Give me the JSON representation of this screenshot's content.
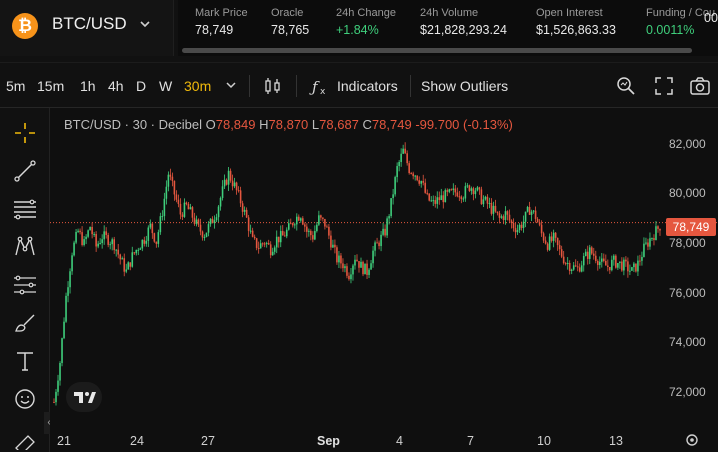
{
  "pair": {
    "logo_glyph": "₿",
    "name": "BTC/USD",
    "chevron_icon": "chevron-down-icon",
    "logo_color": "#f7931a"
  },
  "stats": [
    {
      "label": "Mark Price",
      "value": "78,749"
    },
    {
      "label": "Oracle",
      "value": "78,765"
    },
    {
      "label": "24h Change",
      "value": "+1.84%"
    },
    {
      "label": "24h Volume",
      "value": "$21,828,293.24"
    },
    {
      "label": "Open Interest",
      "value": "$1,526,863.33"
    },
    {
      "label": "Funding / Cou",
      "value": "0.0011%"
    },
    {
      "label": "",
      "value": "00"
    }
  ],
  "toolbar": {
    "intervals": [
      "5m",
      "15m",
      "1h",
      "4h",
      "D",
      "W",
      "30m"
    ],
    "active_interval": "30m",
    "indicators_label": "Indicators",
    "outliers_label": "Show Outliers"
  },
  "legend": {
    "title": "BTC/USD · 30 · Decibel",
    "o_key": "O",
    "o_val": "78,849",
    "h_key": "H",
    "h_val": "78,870",
    "l_key": "L",
    "l_val": "78,687",
    "c_key": "C",
    "c_val": "78,749",
    "change": "-99.700 (-0.13%)"
  },
  "last_price": "78,749",
  "colors": {
    "up": "#3fcf7c",
    "down": "#e5573f",
    "accent": "#f0b90b",
    "price_line": "#e5573f"
  },
  "chart_data": {
    "type": "candlestick",
    "y_ticks": [
      "82,000",
      "80,000",
      "78,000",
      "76,000",
      "74,000",
      "72,000"
    ],
    "x_ticks": [
      "21",
      "24",
      "27",
      "Sep",
      "4",
      "7",
      "10",
      "13"
    ],
    "ylim": [
      71000,
      82500
    ],
    "last_close": 78749,
    "close_path": [
      [
        0,
        71600
      ],
      [
        3,
        73200
      ],
      [
        6,
        75800
      ],
      [
        9,
        77600
      ],
      [
        12,
        78400
      ],
      [
        15,
        77900
      ],
      [
        18,
        78600
      ],
      [
        21,
        77800
      ],
      [
        24,
        78200
      ],
      [
        27,
        78100
      ],
      [
        30,
        77900
      ],
      [
        33,
        77300
      ],
      [
        36,
        76800
      ],
      [
        39,
        77400
      ],
      [
        42,
        77800
      ],
      [
        45,
        78100
      ],
      [
        48,
        78600
      ],
      [
        51,
        78000
      ],
      [
        54,
        79200
      ],
      [
        57,
        80700
      ],
      [
        60,
        79900
      ],
      [
        63,
        79100
      ],
      [
        66,
        79400
      ],
      [
        69,
        79000
      ],
      [
        72,
        78500
      ],
      [
        75,
        78300
      ],
      [
        78,
        78700
      ],
      [
        81,
        79200
      ],
      [
        84,
        80000
      ],
      [
        87,
        80700
      ],
      [
        90,
        80200
      ],
      [
        93,
        79600
      ],
      [
        96,
        78900
      ],
      [
        99,
        78000
      ],
      [
        102,
        77800
      ],
      [
        105,
        78000
      ],
      [
        108,
        77700
      ],
      [
        111,
        78100
      ],
      [
        114,
        78200
      ],
      [
        117,
        78500
      ],
      [
        120,
        78900
      ],
      [
        123,
        79100
      ],
      [
        126,
        78400
      ],
      [
        129,
        78200
      ],
      [
        132,
        78900
      ],
      [
        135,
        78700
      ],
      [
        138,
        78000
      ],
      [
        141,
        77300
      ],
      [
        144,
        77100
      ],
      [
        147,
        76700
      ],
      [
        150,
        77400
      ],
      [
        153,
        77000
      ],
      [
        156,
        76800
      ],
      [
        159,
        77600
      ],
      [
        162,
        78000
      ],
      [
        165,
        78400
      ],
      [
        168,
        79500
      ],
      [
        171,
        80900
      ],
      [
        174,
        81600
      ],
      [
        177,
        80900
      ],
      [
        180,
        80700
      ],
      [
        183,
        80400
      ],
      [
        186,
        79700
      ],
      [
        189,
        79500
      ],
      [
        192,
        79700
      ],
      [
        195,
        79800
      ],
      [
        198,
        79900
      ],
      [
        201,
        80000
      ],
      [
        204,
        79900
      ],
      [
        207,
        80200
      ],
      [
        210,
        80100
      ],
      [
        213,
        79700
      ],
      [
        216,
        79500
      ],
      [
        219,
        79200
      ],
      [
        222,
        78900
      ],
      [
        225,
        79100
      ],
      [
        228,
        78700
      ],
      [
        231,
        78500
      ],
      [
        234,
        78800
      ],
      [
        237,
        79300
      ],
      [
        240,
        79000
      ],
      [
        243,
        78300
      ],
      [
        246,
        77900
      ],
      [
        249,
        78100
      ],
      [
        252,
        77600
      ],
      [
        255,
        77200
      ],
      [
        258,
        77000
      ],
      [
        261,
        76900
      ],
      [
        264,
        77300
      ],
      [
        267,
        77600
      ],
      [
        270,
        77400
      ],
      [
        273,
        77100
      ],
      [
        276,
        77000
      ],
      [
        279,
        77200
      ],
      [
        282,
        77100
      ],
      [
        285,
        77000
      ],
      [
        288,
        76800
      ],
      [
        291,
        77100
      ],
      [
        294,
        77700
      ],
      [
        297,
        78100
      ],
      [
        300,
        78400
      ],
      [
        303,
        78749
      ]
    ]
  }
}
